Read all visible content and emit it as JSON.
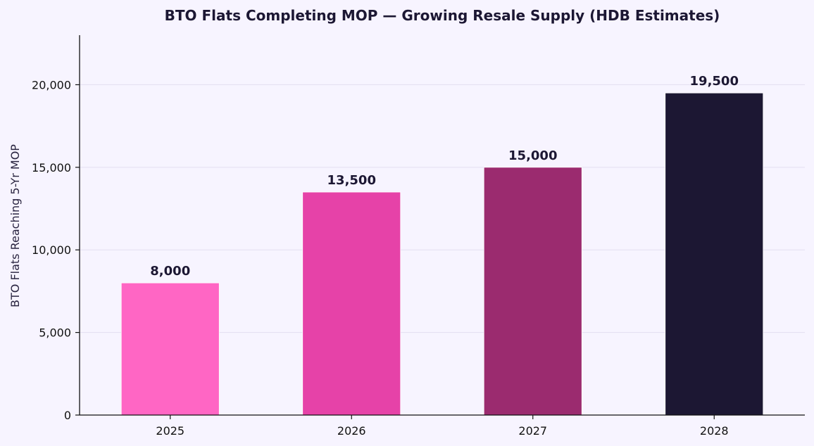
{
  "chart_data": {
    "type": "bar",
    "title": "BTO Flats Completing MOP — Growing Resale Supply (HDB Estimates)",
    "xlabel": "",
    "ylabel": "BTO Flats Reaching 5-Yr MOP",
    "categories": [
      "2025",
      "2026",
      "2027",
      "2028"
    ],
    "values": [
      8000,
      13500,
      15000,
      19500
    ],
    "value_labels": [
      "8,000",
      "13,500",
      "15,000",
      "19,500"
    ],
    "bar_colors": [
      "#ff66c4",
      "#e642a8",
      "#9b2b6f",
      "#1c1733"
    ],
    "ylim": [
      0,
      23000
    ],
    "yticks": [
      0,
      5000,
      10000,
      15000,
      20000
    ],
    "ytick_labels": [
      "0",
      "5,000",
      "10,000",
      "15,000",
      "20,000"
    ],
    "grid": true,
    "legend": false
  }
}
